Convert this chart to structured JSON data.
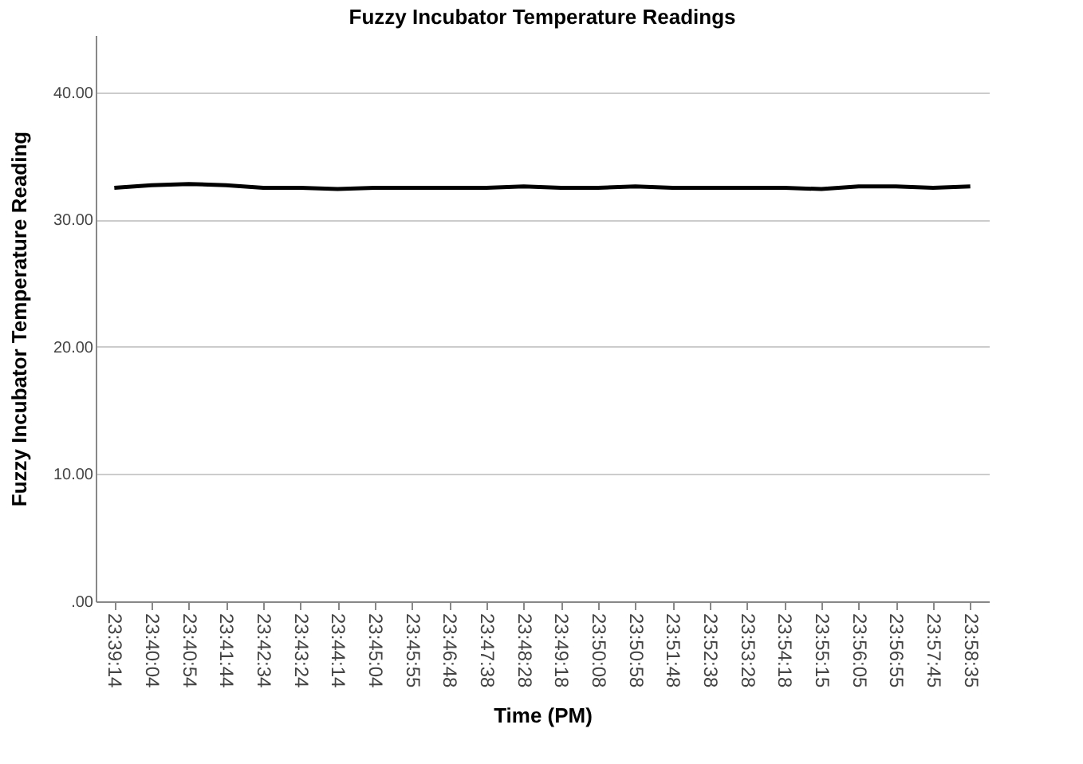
{
  "chart_data": {
    "type": "line",
    "title": "Fuzzy Incubator Temperature Readings",
    "xlabel": "Time (PM)",
    "ylabel": "Fuzzy Incubator Temperature Reading",
    "categories": [
      "23:39:14",
      "23:40:04",
      "23:40:54",
      "23:41:44",
      "23:42:34",
      "23:43:24",
      "23:44:14",
      "23:45:04",
      "23:45:55",
      "23:46:48",
      "23:47:38",
      "23:48:28",
      "23:49:18",
      "23:50:08",
      "23:50:58",
      "23:51:48",
      "23:52:38",
      "23:53:28",
      "23:54:18",
      "23:55:15",
      "23:56:05",
      "23:56:55",
      "23:57:45",
      "23:58:35"
    ],
    "series": [
      {
        "color": "#000000",
        "values": [
          32.5,
          32.7,
          32.8,
          32.7,
          32.5,
          32.5,
          32.4,
          32.5,
          32.5,
          32.5,
          32.5,
          32.6,
          32.5,
          32.5,
          32.6,
          32.5,
          32.5,
          32.5,
          32.5,
          32.4,
          32.6,
          32.6,
          32.5,
          32.6
        ]
      }
    ],
    "ylim": [
      0,
      44.5
    ],
    "yticks": [
      {
        "value": 0,
        "label": ".00"
      },
      {
        "value": 10,
        "label": "10.00"
      },
      {
        "value": 20,
        "label": "20.00"
      },
      {
        "value": 30,
        "label": "30.00"
      },
      {
        "value": 40,
        "label": "40.00"
      }
    ],
    "grid": "y",
    "legend": false,
    "marker": "none",
    "line_style": "solid"
  }
}
